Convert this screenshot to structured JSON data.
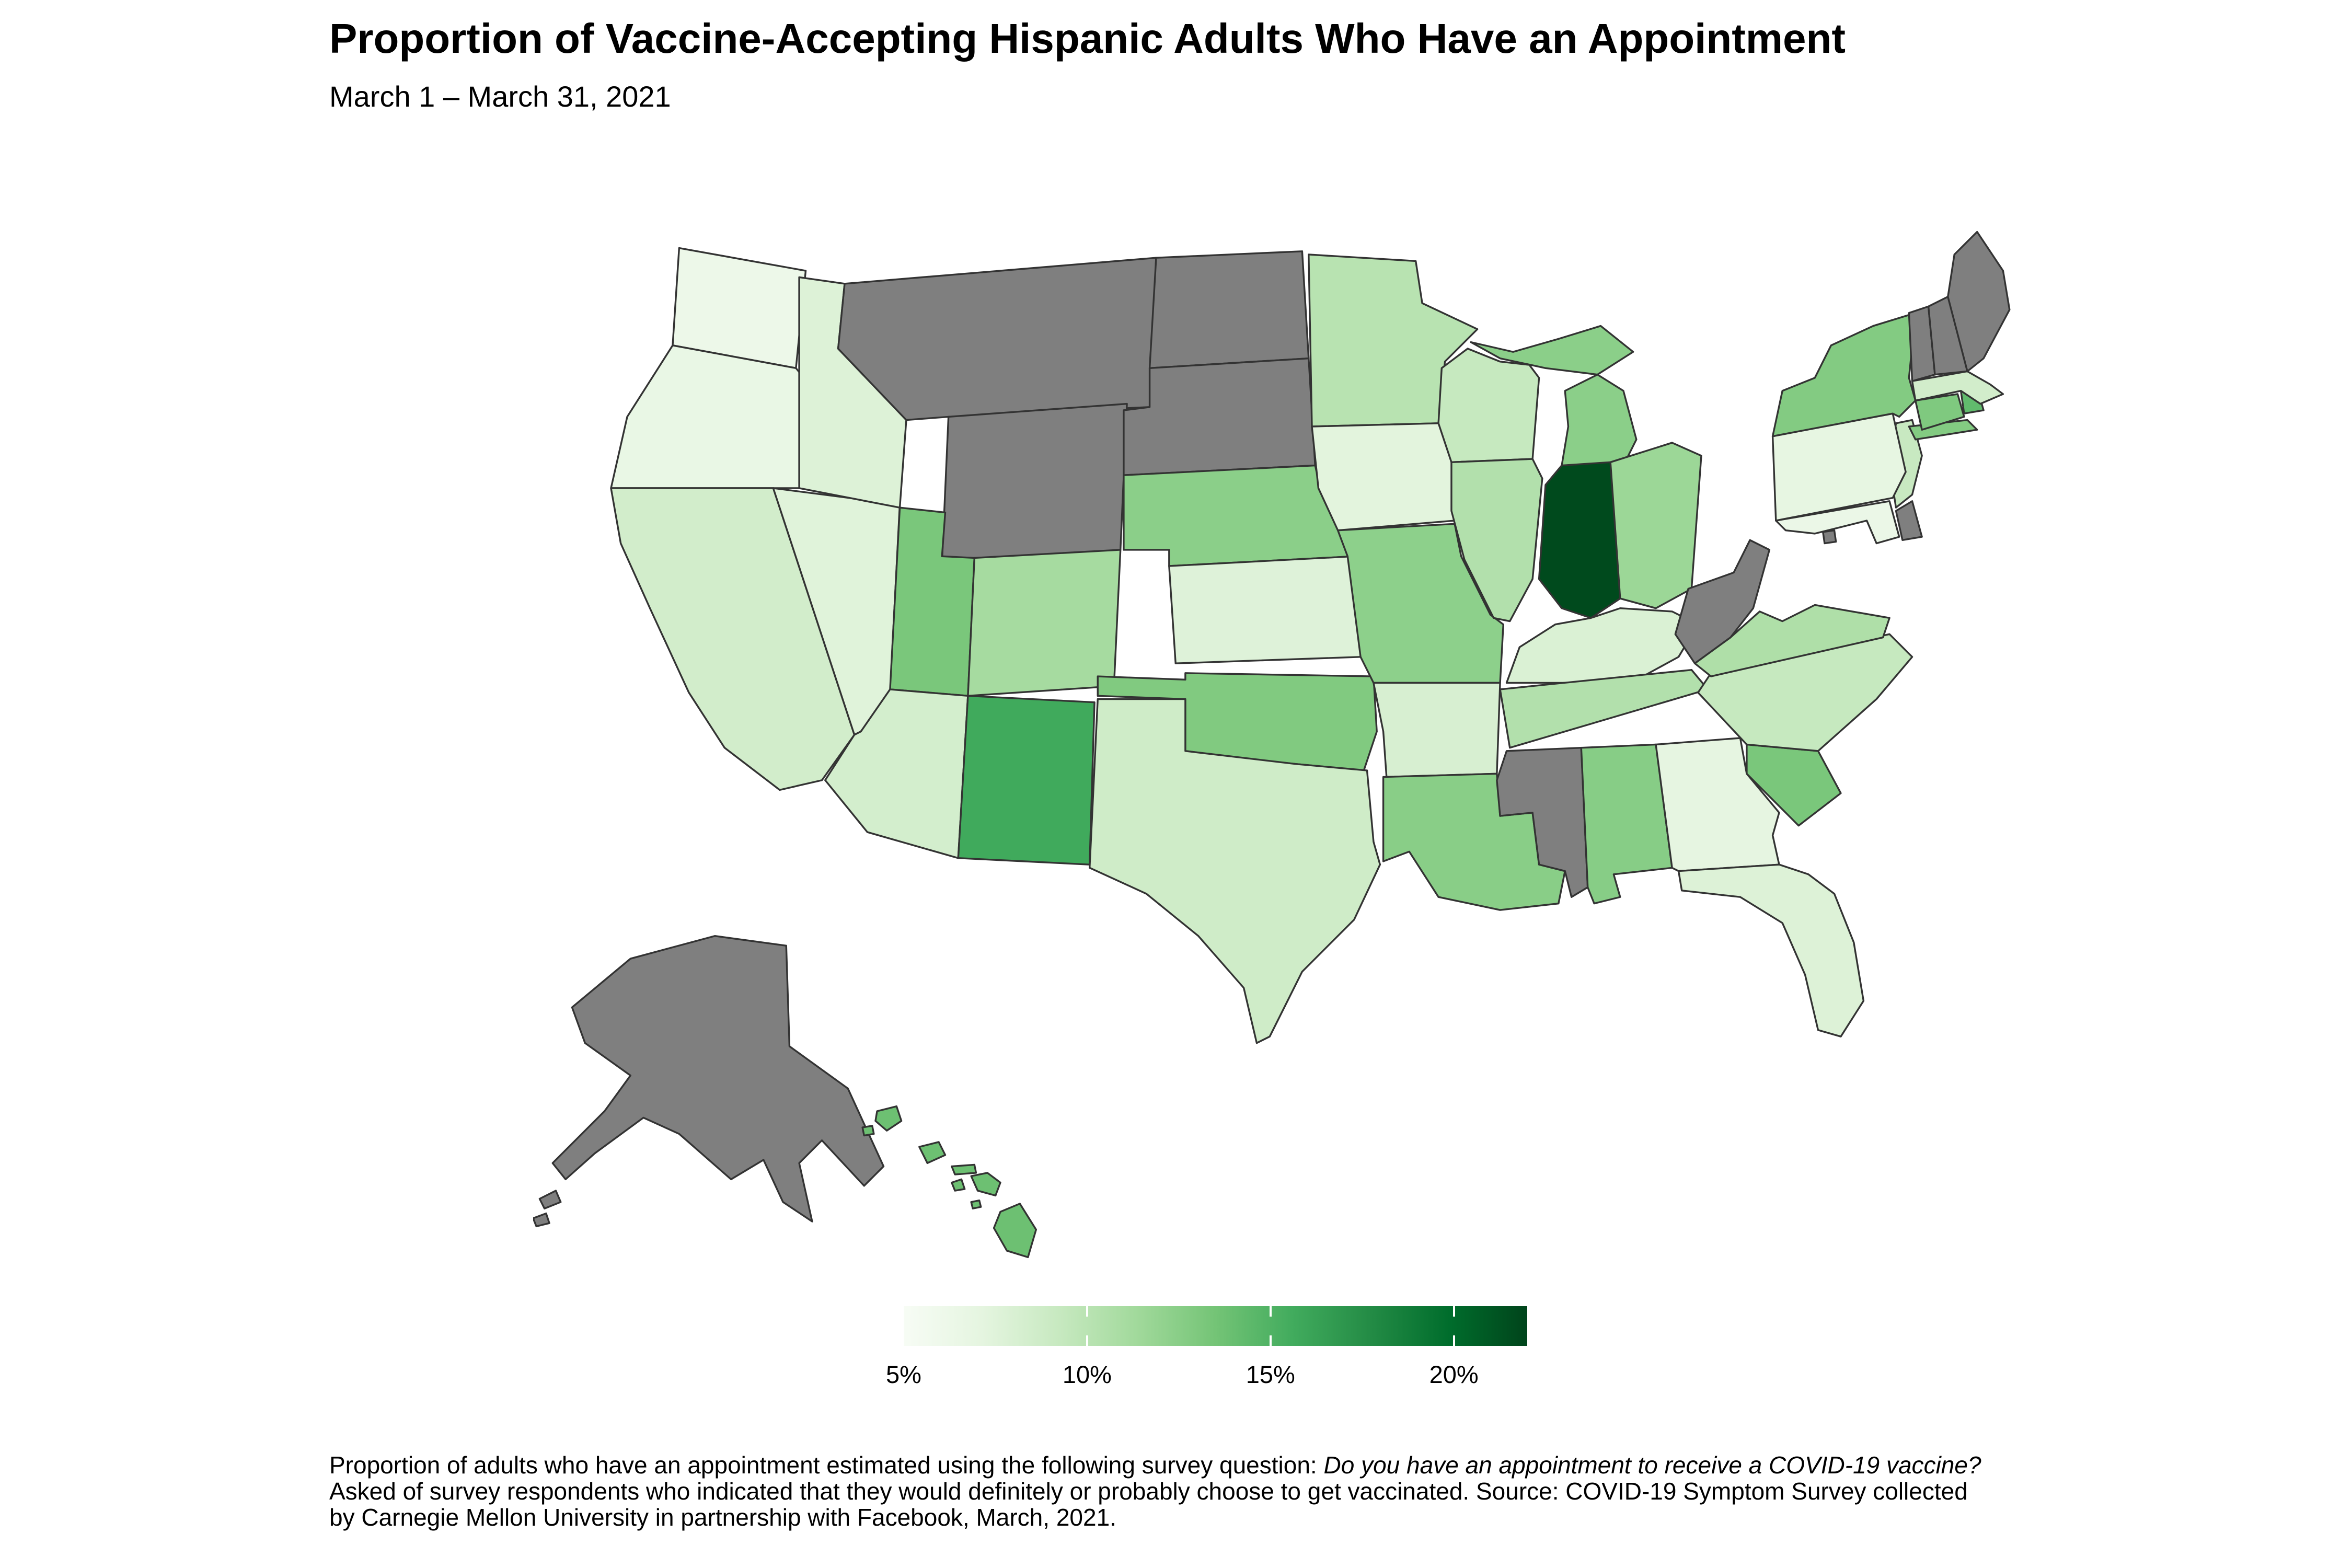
{
  "header": {
    "title": "Proportion of Vaccine-Accepting Hispanic Adults Who Have an Appointment",
    "subtitle": "March 1 – March 31, 2021"
  },
  "chart_data": {
    "type": "choropleth_map",
    "region": "United States, by state",
    "title": "Proportion of Vaccine-Accepting Hispanic Adults Who Have an Appointment",
    "subtitle": "March 1 – March 31, 2021",
    "metric": "Percent of vaccine-accepting Hispanic adults who have a COVID-19 vaccine appointment",
    "unit": "%",
    "border_color": "#333333",
    "background_color": "#ffffff",
    "color_scale": {
      "type": "linear",
      "domain": [
        5,
        22
      ],
      "stops": [
        "#f7fcf5",
        "#e5f5e0",
        "#c7e9c0",
        "#a1d99b",
        "#74c476",
        "#41ab5d",
        "#238b45",
        "#006d2c",
        "#00441b"
      ],
      "no_data_color": "#7f7f7f"
    },
    "legend": {
      "orientation": "horizontal",
      "tick_color": "#ffffff",
      "ticks": [
        {
          "label": "5%",
          "value": 5,
          "tick": false
        },
        {
          "label": "10%",
          "value": 10,
          "tick": true
        },
        {
          "label": "15%",
          "value": 15,
          "tick": true
        },
        {
          "label": "20%",
          "value": 20,
          "tick": true
        }
      ]
    },
    "states": [
      {
        "code": "WA",
        "name": "Washington",
        "value": 6.2
      },
      {
        "code": "OR",
        "name": "Oregon",
        "value": 6.6
      },
      {
        "code": "CA",
        "name": "California",
        "value": 8.5
      },
      {
        "code": "NV",
        "name": "Nevada",
        "value": 7.5
      },
      {
        "code": "ID",
        "name": "Idaho",
        "value": 7.7
      },
      {
        "code": "MT",
        "name": "Montana",
        "value": null
      },
      {
        "code": "WY",
        "name": "Wyoming",
        "value": null
      },
      {
        "code": "UT",
        "name": "Utah",
        "value": 13.2
      },
      {
        "code": "CO",
        "name": "Colorado",
        "value": 11.1
      },
      {
        "code": "AZ",
        "name": "Arizona",
        "value": 8.4
      },
      {
        "code": "NM",
        "name": "New Mexico",
        "value": 15.7
      },
      {
        "code": "ND",
        "name": "North Dakota",
        "value": null
      },
      {
        "code": "SD",
        "name": "South Dakota",
        "value": null
      },
      {
        "code": "NE",
        "name": "Nebraska",
        "value": 12.4
      },
      {
        "code": "KS",
        "name": "Kansas",
        "value": 7.6
      },
      {
        "code": "OK",
        "name": "Oklahoma",
        "value": 12.9
      },
      {
        "code": "TX",
        "name": "Texas",
        "value": 8.7
      },
      {
        "code": "MN",
        "name": "Minnesota",
        "value": 10.1
      },
      {
        "code": "IA",
        "name": "Iowa",
        "value": 7.3
      },
      {
        "code": "MO",
        "name": "Missouri",
        "value": 12.3
      },
      {
        "code": "AR",
        "name": "Arkansas",
        "value": 8.1
      },
      {
        "code": "LA",
        "name": "Louisiana",
        "value": 12.5
      },
      {
        "code": "WI",
        "name": "Wisconsin",
        "value": 9.3
      },
      {
        "code": "IL",
        "name": "Illinois",
        "value": 10.4
      },
      {
        "code": "MI",
        "name": "Michigan",
        "value": 12.4
      },
      {
        "code": "IN",
        "name": "Indiana",
        "value": 21.7
      },
      {
        "code": "OH",
        "name": "Ohio",
        "value": 11.6
      },
      {
        "code": "KY",
        "name": "Kentucky",
        "value": 7.9
      },
      {
        "code": "TN",
        "name": "Tennessee",
        "value": 10.4
      },
      {
        "code": "MS",
        "name": "Mississippi",
        "value": null
      },
      {
        "code": "AL",
        "name": "Alabama",
        "value": 12.6
      },
      {
        "code": "GA",
        "name": "Georgia",
        "value": 7.0
      },
      {
        "code": "FL",
        "name": "Florida",
        "value": 7.7
      },
      {
        "code": "SC",
        "name": "South Carolina",
        "value": 13.2
      },
      {
        "code": "NC",
        "name": "North Carolina",
        "value": 9.3
      },
      {
        "code": "VA",
        "name": "Virginia",
        "value": 10.6
      },
      {
        "code": "WV",
        "name": "West Virginia",
        "value": null
      },
      {
        "code": "MD",
        "name": "Maryland",
        "value": 6.4
      },
      {
        "code": "DE",
        "name": "Delaware",
        "value": null
      },
      {
        "code": "DC",
        "name": "District of Columbia",
        "value": null
      },
      {
        "code": "NJ",
        "name": "New Jersey",
        "value": 9.2
      },
      {
        "code": "PA",
        "name": "Pennsylvania",
        "value": 6.9
      },
      {
        "code": "NY",
        "name": "New York",
        "value": 12.8
      },
      {
        "code": "CT",
        "name": "Connecticut",
        "value": 13.0
      },
      {
        "code": "RI",
        "name": "Rhode Island",
        "value": 14.3
      },
      {
        "code": "MA",
        "name": "Massachusetts",
        "value": 8.5
      },
      {
        "code": "VT",
        "name": "Vermont",
        "value": null
      },
      {
        "code": "NH",
        "name": "New Hampshire",
        "value": null
      },
      {
        "code": "ME",
        "name": "Maine",
        "value": null
      },
      {
        "code": "AK",
        "name": "Alaska",
        "value": null
      },
      {
        "code": "HI",
        "name": "Hawaii",
        "value": 13.8
      }
    ]
  },
  "footnote": {
    "lines": [
      [
        {
          "text": "Proportion of adults who have an appointment estimated using the following survey question: ",
          "italic": false
        },
        {
          "text": "Do you have an appointment to receive a COVID-19 vaccine?",
          "italic": true
        }
      ],
      [
        {
          "text": "Asked of survey respondents who indicated that they would definitely or probably choose to get vaccinated. Source: COVID-19 Symptom Survey collected",
          "italic": false
        }
      ],
      [
        {
          "text": "by Carnegie Mellon University in partnership with Facebook, March, 2021.",
          "italic": false
        }
      ]
    ]
  }
}
